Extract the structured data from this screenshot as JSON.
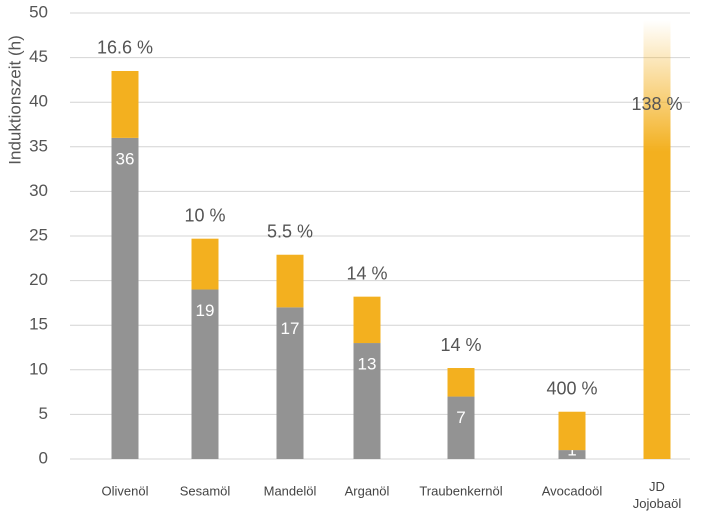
{
  "chart_data": {
    "type": "stacked_bar",
    "y_label": "Induktionszeit (h)",
    "categories": [
      "Olivenöl",
      "Sesamöl",
      "Mandelöl",
      "Arganöl",
      "Traubenkernöl",
      "Avocadoöl",
      "JD Jojobaöl"
    ],
    "series": [
      {
        "color": "#939393",
        "values": [
          36,
          19,
          17,
          13,
          7,
          1,
          null
        ]
      },
      {
        "color": "#f3b01f",
        "values": [
          7.5,
          5.7,
          5.9,
          5.2,
          3.2,
          4.3,
          49.2
        ]
      }
    ],
    "annotations": [
      "16.6 %",
      "10 %",
      "5.5 %",
      "14 %",
      "14 %",
      "400 %",
      "138 %"
    ],
    "ylim": [
      0,
      50
    ],
    "yticks": [
      0,
      5,
      10,
      15,
      20,
      25,
      30,
      35,
      40,
      45,
      50
    ],
    "grid": true
  }
}
